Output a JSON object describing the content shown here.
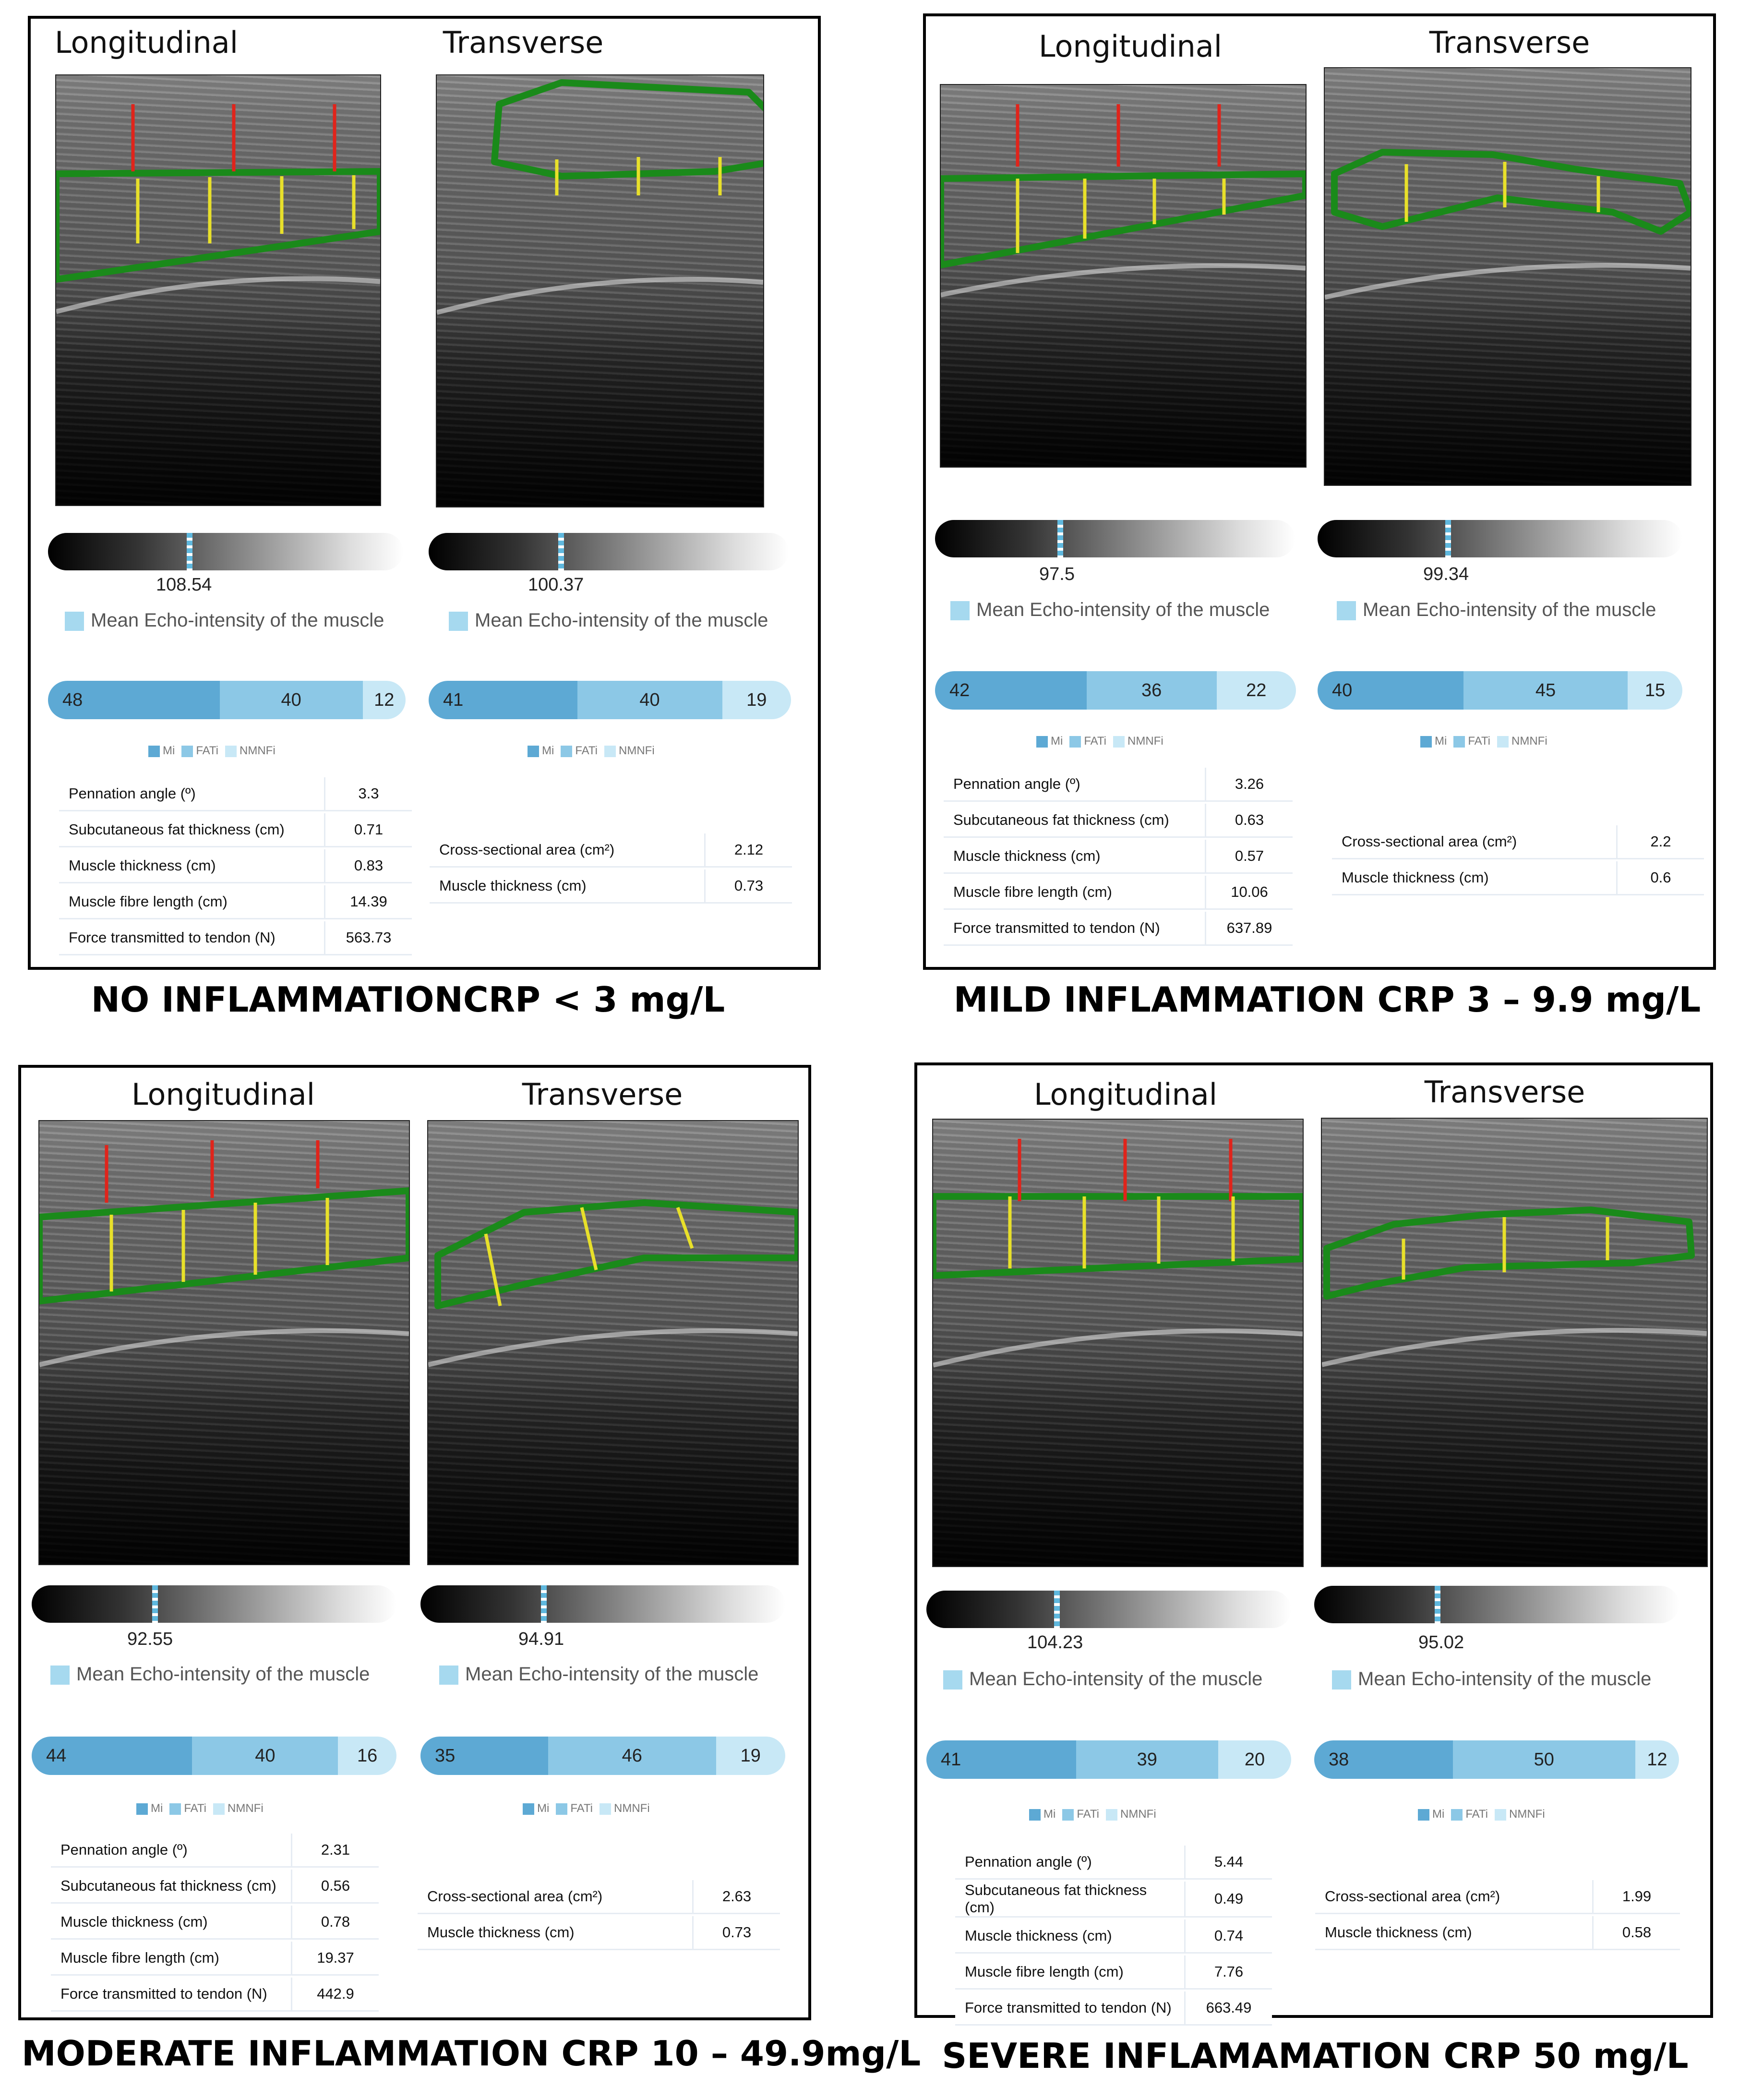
{
  "colors": {
    "green": "#1a8a1a",
    "red": "#e0241b",
    "yellow": "#e8e02a",
    "mi": "#5da9d4",
    "fati": "#8cc8e6",
    "nmnfi": "#c8e8f6"
  },
  "legend_keys": {
    "mi": "Mi",
    "fati": "FATi",
    "nmnfi": "NMNFi"
  },
  "panels": [
    {
      "caption": "NO INFLAMMATIONCRP < 3 mg/L",
      "longitudinal": {
        "title": "Longitudinal",
        "echo": "108.54",
        "echo_frac": 0.39,
        "echo_label": "Mean Echo-intensity of the muscle",
        "bar": [
          "48",
          "40",
          "12"
        ]
      },
      "transverse": {
        "title": "Transverse",
        "echo": "100.37",
        "echo_frac": 0.36,
        "echo_label": "Mean Echo-intensity of the muscle",
        "bar": [
          "41",
          "40",
          "19"
        ]
      },
      "long_metrics": [
        [
          "Pennation angle (º)",
          "3.3"
        ],
        [
          "Subcutaneous fat thickness (cm)",
          "0.71"
        ],
        [
          "Muscle thickness (cm)",
          "0.83"
        ],
        [
          "Muscle fibre length (cm)",
          "14.39"
        ],
        [
          "Force transmitted to tendon (N)",
          "563.73"
        ]
      ],
      "trans_metrics": [
        [
          "Cross-sectional area (cm²)",
          "2.12"
        ],
        [
          "Muscle thickness (cm)",
          "0.73"
        ]
      ]
    },
    {
      "caption": "MILD INFLAMMATION CRP 3 – 9.9 mg/L",
      "longitudinal": {
        "title": "Longitudinal",
        "echo": "97.5",
        "echo_frac": 0.34,
        "echo_label": "Mean Echo-intensity of the muscle",
        "bar": [
          "42",
          "36",
          "22"
        ]
      },
      "transverse": {
        "title": "Transverse",
        "echo": "99.34",
        "echo_frac": 0.35,
        "echo_label": "Mean Echo-intensity of the muscle",
        "bar": [
          "40",
          "45",
          "15"
        ]
      },
      "long_metrics": [
        [
          "Pennation angle (º)",
          "3.26"
        ],
        [
          "Subcutaneous fat thickness (cm)",
          "0.63"
        ],
        [
          "Muscle thickness (cm)",
          "0.57"
        ],
        [
          "Muscle fibre length (cm)",
          "10.06"
        ],
        [
          "Force transmitted to tendon (N)",
          "637.89"
        ]
      ],
      "trans_metrics": [
        [
          "Cross-sectional area (cm²)",
          "2.2"
        ],
        [
          "Muscle thickness (cm)",
          "0.6"
        ]
      ]
    },
    {
      "caption": "MODERATE INFLAMMATION CRP 10 – 49.9mg/L",
      "longitudinal": {
        "title": "Longitudinal",
        "echo": "92.55",
        "echo_frac": 0.33,
        "echo_label": "Mean Echo-intensity of the muscle",
        "bar": [
          "44",
          "40",
          "16"
        ]
      },
      "transverse": {
        "title": "Transverse",
        "echo": "94.91",
        "echo_frac": 0.33,
        "echo_label": "Mean Echo-intensity of the muscle",
        "bar": [
          "35",
          "46",
          "19"
        ]
      },
      "long_metrics": [
        [
          "Pennation angle (º)",
          "2.31"
        ],
        [
          "Subcutaneous fat thickness (cm)",
          "0.56"
        ],
        [
          "Muscle thickness (cm)",
          "0.78"
        ],
        [
          "Muscle fibre length (cm)",
          "19.37"
        ],
        [
          "Force transmitted to tendon (N)",
          "442.9"
        ]
      ],
      "trans_metrics": [
        [
          "Cross-sectional area (cm²)",
          "2.63"
        ],
        [
          "Muscle thickness (cm)",
          "0.73"
        ]
      ]
    },
    {
      "caption": "SEVERE INFLAMAMATION CRP 50 mg/L",
      "longitudinal": {
        "title": "Longitudinal",
        "echo": "104.23",
        "echo_frac": 0.35,
        "echo_label": "Mean Echo-intensity of the muscle",
        "bar": [
          "41",
          "39",
          "20"
        ]
      },
      "transverse": {
        "title": "Transverse",
        "echo": "95.02",
        "echo_frac": 0.33,
        "echo_label": "Mean Echo-intensity of the muscle",
        "bar": [
          "38",
          "50",
          "12"
        ]
      },
      "long_metrics": [
        [
          "Pennation angle (º)",
          "5.44"
        ],
        [
          "Subcutaneous fat thickness (cm)",
          "0.49"
        ],
        [
          "Muscle thickness (cm)",
          "0.74"
        ],
        [
          "Muscle fibre length (cm)",
          "7.76"
        ],
        [
          "Force transmitted to tendon (N)",
          "663.49"
        ]
      ],
      "trans_metrics": [
        [
          "Cross-sectional area (cm²)",
          "1.99"
        ],
        [
          "Muscle thickness (cm)",
          "0.58"
        ]
      ]
    }
  ]
}
